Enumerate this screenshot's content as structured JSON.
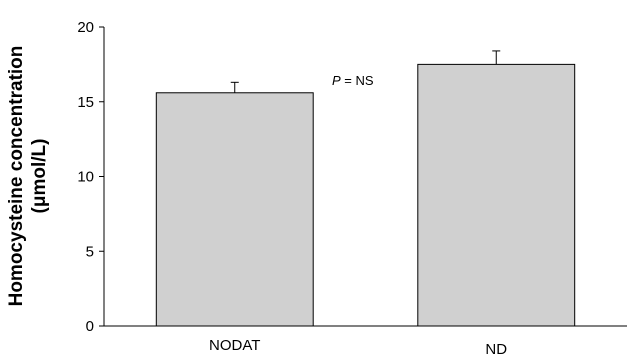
{
  "chart_data": {
    "type": "bar",
    "categories": [
      "NODAT",
      "ND"
    ],
    "values": [
      15.6,
      17.5
    ],
    "errors": [
      0.7,
      0.9
    ],
    "ylabel_line1": "Homocysteine concentration",
    "ylabel_line2": "(μmol/L)",
    "ylim": [
      0,
      20
    ],
    "yticks": [
      "0",
      "5",
      "10",
      "15",
      "20"
    ],
    "annotation_p": "P",
    "annotation_rest": " = NS",
    "grid": false,
    "colors": {
      "bar": "#d0d0d0",
      "edge": "#000000"
    }
  }
}
